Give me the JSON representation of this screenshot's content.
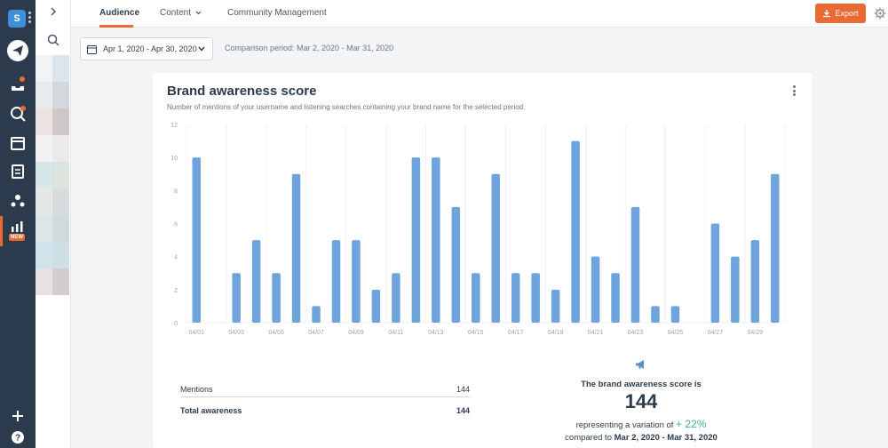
{
  "workspace": {
    "initial": "S"
  },
  "nav": {
    "new_badge": "NEW"
  },
  "tabs": [
    {
      "label": "Audience"
    },
    {
      "label": "Content"
    },
    {
      "label": "Community Management"
    }
  ],
  "toolbar": {
    "export_label": "Export"
  },
  "filters": {
    "date_range": "Apr 1, 2020 - Apr 30, 2020",
    "comparison": "Comparison period: Mar 2, 2020 - Mar 31, 2020"
  },
  "card": {
    "title": "Brand awareness score",
    "subtitle": "Number of mentions of your username and listening searches containing your brand name for the selected period."
  },
  "chart_data": {
    "type": "bar",
    "categories": [
      "04/01",
      "04/02",
      "04/03",
      "04/04",
      "04/05",
      "04/06",
      "04/07",
      "04/08",
      "04/09",
      "04/10",
      "04/11",
      "04/12",
      "04/13",
      "04/14",
      "04/15",
      "04/16",
      "04/17",
      "04/18",
      "04/19",
      "04/20",
      "04/21",
      "04/22",
      "04/23",
      "04/24",
      "04/25",
      "04/26",
      "04/27",
      "04/28",
      "04/29",
      "04/30"
    ],
    "tick_labels": [
      "04/01",
      "",
      "04/03",
      "",
      "04/05",
      "",
      "04/07",
      "",
      "04/09",
      "",
      "04/11",
      "",
      "04/13",
      "",
      "04/15",
      "",
      "04/17",
      "",
      "04/19",
      "",
      "04/21",
      "",
      "04/23",
      "",
      "04/25",
      "",
      "04/27",
      "",
      "04/29",
      ""
    ],
    "values": [
      10,
      0,
      3,
      5,
      3,
      9,
      1,
      5,
      5,
      2,
      3,
      10,
      10,
      7,
      3,
      9,
      3,
      3,
      2,
      11,
      4,
      3,
      7,
      1,
      1,
      0,
      6,
      4,
      5,
      9
    ],
    "yticks": [
      0,
      2,
      4,
      6,
      8,
      10,
      12
    ],
    "ylim": [
      0,
      12
    ],
    "grid": true,
    "bar_color": "#6fa3dc"
  },
  "summary": {
    "mentions_label": "Mentions",
    "mentions_value": "144",
    "total_label": "Total awareness",
    "total_value": "144"
  },
  "score": {
    "intro": "The brand awareness score is",
    "value": "144",
    "variation_prefix": "representing a variation of",
    "variation_value": "+ 22%",
    "compared_to": "compared to",
    "compared_period": "Mar 2, 2020 - Mar 31, 2020"
  }
}
